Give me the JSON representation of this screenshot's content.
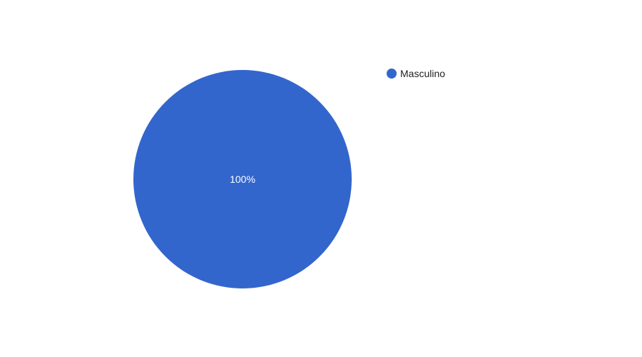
{
  "chart_data": {
    "type": "pie",
    "title": "",
    "slices": [
      {
        "label": "Masculino",
        "value": 100,
        "percent_label": "100%",
        "color": "#3366cc"
      }
    ],
    "legend_position": "right"
  }
}
